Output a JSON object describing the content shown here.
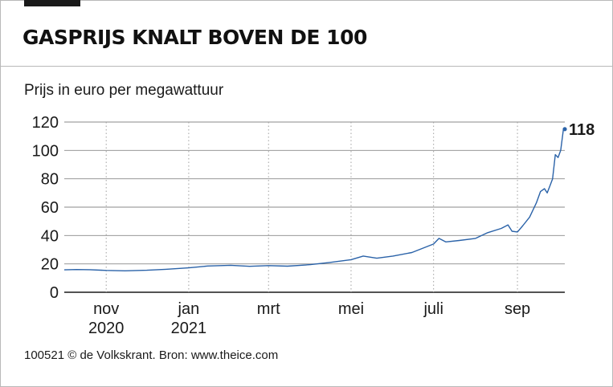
{
  "title": "GASPRIJS KNALT BOVEN DE 100",
  "subtitle": "Prijs in euro per megawattuur",
  "footer": "100521 © de Volkskrant. Bron: www.theice.com",
  "colors": {
    "line": "#2a62a8",
    "text": "#1a1a1a",
    "grid": "#8a8a8a",
    "vgrid": "#a0a0a0"
  },
  "chart_data": {
    "type": "line",
    "title": "GASPRIJS KNALT BOVEN DE 100",
    "ylabel": "Prijs in euro per megawattuur",
    "xlabel": "",
    "ylim": [
      0,
      120
    ],
    "yticks": [
      0,
      20,
      40,
      60,
      80,
      100,
      120
    ],
    "xticks": [
      {
        "month": "nov",
        "year": "2020",
        "date": "2020-11-01"
      },
      {
        "month": "jan",
        "year": "2021",
        "date": "2021-01-01"
      },
      {
        "month": "mrt",
        "year": "",
        "date": "2021-03-01"
      },
      {
        "month": "mei",
        "year": "",
        "date": "2021-05-01"
      },
      {
        "month": "juli",
        "year": "",
        "date": "2021-07-01"
      },
      {
        "month": "sep",
        "year": "",
        "date": "2021-09-01"
      }
    ],
    "xlim": [
      "2020-10-01",
      "2021-10-06"
    ],
    "grid": {
      "horizontal": true,
      "vertical": "dotted"
    },
    "annotation": {
      "label": "118",
      "date": "2021-10-06",
      "value": 115
    },
    "series": [
      {
        "points": [
          [
            "2020-10-01",
            15.8
          ],
          [
            "2020-10-10",
            16.0
          ],
          [
            "2020-10-20",
            15.9
          ],
          [
            "2020-11-01",
            15.4
          ],
          [
            "2020-11-15",
            15.1
          ],
          [
            "2020-12-01",
            15.5
          ],
          [
            "2020-12-15",
            16.2
          ],
          [
            "2021-01-01",
            17.2
          ],
          [
            "2021-01-15",
            18.5
          ],
          [
            "2021-02-01",
            19.0
          ],
          [
            "2021-02-15",
            18.3
          ],
          [
            "2021-03-01",
            18.8
          ],
          [
            "2021-03-15",
            18.4
          ],
          [
            "2021-04-01",
            19.5
          ],
          [
            "2021-04-15",
            21.0
          ],
          [
            "2021-05-01",
            23.0
          ],
          [
            "2021-05-10",
            25.5
          ],
          [
            "2021-05-20",
            24.0
          ],
          [
            "2021-06-01",
            25.5
          ],
          [
            "2021-06-15",
            28.0
          ],
          [
            "2021-07-01",
            34.0
          ],
          [
            "2021-07-05",
            38.0
          ],
          [
            "2021-07-10",
            35.5
          ],
          [
            "2021-07-20",
            36.5
          ],
          [
            "2021-08-01",
            38.0
          ],
          [
            "2021-08-10",
            42.0
          ],
          [
            "2021-08-20",
            45.0
          ],
          [
            "2021-08-25",
            47.5
          ],
          [
            "2021-08-28",
            43.0
          ],
          [
            "2021-09-01",
            42.5
          ],
          [
            "2021-09-05",
            47.0
          ],
          [
            "2021-09-10",
            53.0
          ],
          [
            "2021-09-15",
            63.0
          ],
          [
            "2021-09-18",
            71.0
          ],
          [
            "2021-09-21",
            73.0
          ],
          [
            "2021-09-23",
            70.0
          ],
          [
            "2021-09-25",
            75.0
          ],
          [
            "2021-09-27",
            80.0
          ],
          [
            "2021-09-29",
            97.0
          ],
          [
            "2021-10-01",
            95.0
          ],
          [
            "2021-10-03",
            100.0
          ],
          [
            "2021-10-05",
            115.0
          ]
        ]
      }
    ]
  }
}
